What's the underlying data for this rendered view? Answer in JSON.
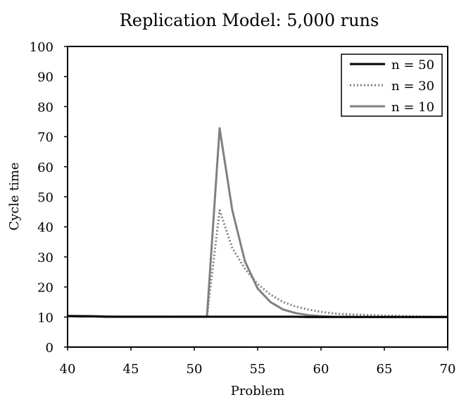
{
  "chart_data": {
    "type": "line",
    "title": "Replication Model: 5,000 runs",
    "xlabel": "Problem",
    "ylabel": "Cycle time",
    "xlim": [
      40,
      70
    ],
    "ylim": [
      0,
      100
    ],
    "x_ticks": [
      40,
      45,
      50,
      55,
      60,
      65,
      70
    ],
    "y_ticks": [
      0,
      10,
      20,
      30,
      40,
      50,
      60,
      70,
      80,
      90,
      100
    ],
    "grid": false,
    "legend_position": "top-right",
    "series": [
      {
        "name": "n = 50",
        "style": "solid",
        "color": "#000000",
        "x": [
          40,
          41,
          42,
          43,
          44,
          45,
          46,
          47,
          48,
          49,
          50,
          51,
          52,
          53,
          54,
          55,
          56,
          57,
          58,
          59,
          60,
          61,
          62,
          63,
          64,
          65,
          66,
          67,
          68,
          69,
          70
        ],
        "y": [
          10.3,
          10.2,
          10.2,
          10.1,
          10.1,
          10.1,
          10.1,
          10.1,
          10.1,
          10.1,
          10.1,
          10.1,
          10.1,
          10.1,
          10.1,
          10.1,
          10.1,
          10.1,
          10.1,
          10.0,
          10.0,
          10.0,
          10.0,
          10.0,
          10.0,
          10.0,
          10.0,
          10.0,
          10.0,
          10.0,
          10.0
        ]
      },
      {
        "name": "n = 30",
        "style": "dotted",
        "color": "#7f7f7f",
        "x": [
          40,
          41,
          42,
          43,
          44,
          45,
          46,
          47,
          48,
          49,
          50,
          51,
          52,
          53,
          54,
          55,
          56,
          57,
          58,
          59,
          60,
          61,
          62,
          63,
          64,
          65,
          66,
          67,
          68,
          69,
          70
        ],
        "y": [
          10.4,
          10.3,
          10.2,
          10.1,
          10.1,
          10.1,
          10.1,
          10.1,
          10.1,
          10.1,
          10.1,
          10.1,
          45.5,
          33.0,
          26.0,
          21.0,
          17.5,
          15.0,
          13.5,
          12.5,
          11.7,
          11.2,
          10.9,
          10.8,
          10.6,
          10.5,
          10.4,
          10.3,
          10.2,
          10.1,
          10.1
        ]
      },
      {
        "name": "n = 10",
        "style": "solid",
        "color": "#808080",
        "x": [
          40,
          41,
          42,
          43,
          44,
          45,
          46,
          47,
          48,
          49,
          50,
          51,
          52,
          53,
          54,
          55,
          56,
          57,
          58,
          59,
          60,
          61,
          62,
          63,
          64,
          65,
          66,
          67,
          68,
          69,
          70
        ],
        "y": [
          10.4,
          10.4,
          10.3,
          10.2,
          10.1,
          10.1,
          10.1,
          10.1,
          10.1,
          10.1,
          10.1,
          10.1,
          72.8,
          45.5,
          28.5,
          19.5,
          15.0,
          12.5,
          11.3,
          10.6,
          10.3,
          10.1,
          10.1,
          10.0,
          10.0,
          10.0,
          10.0,
          10.0,
          10.0,
          10.0,
          10.0
        ]
      }
    ]
  }
}
